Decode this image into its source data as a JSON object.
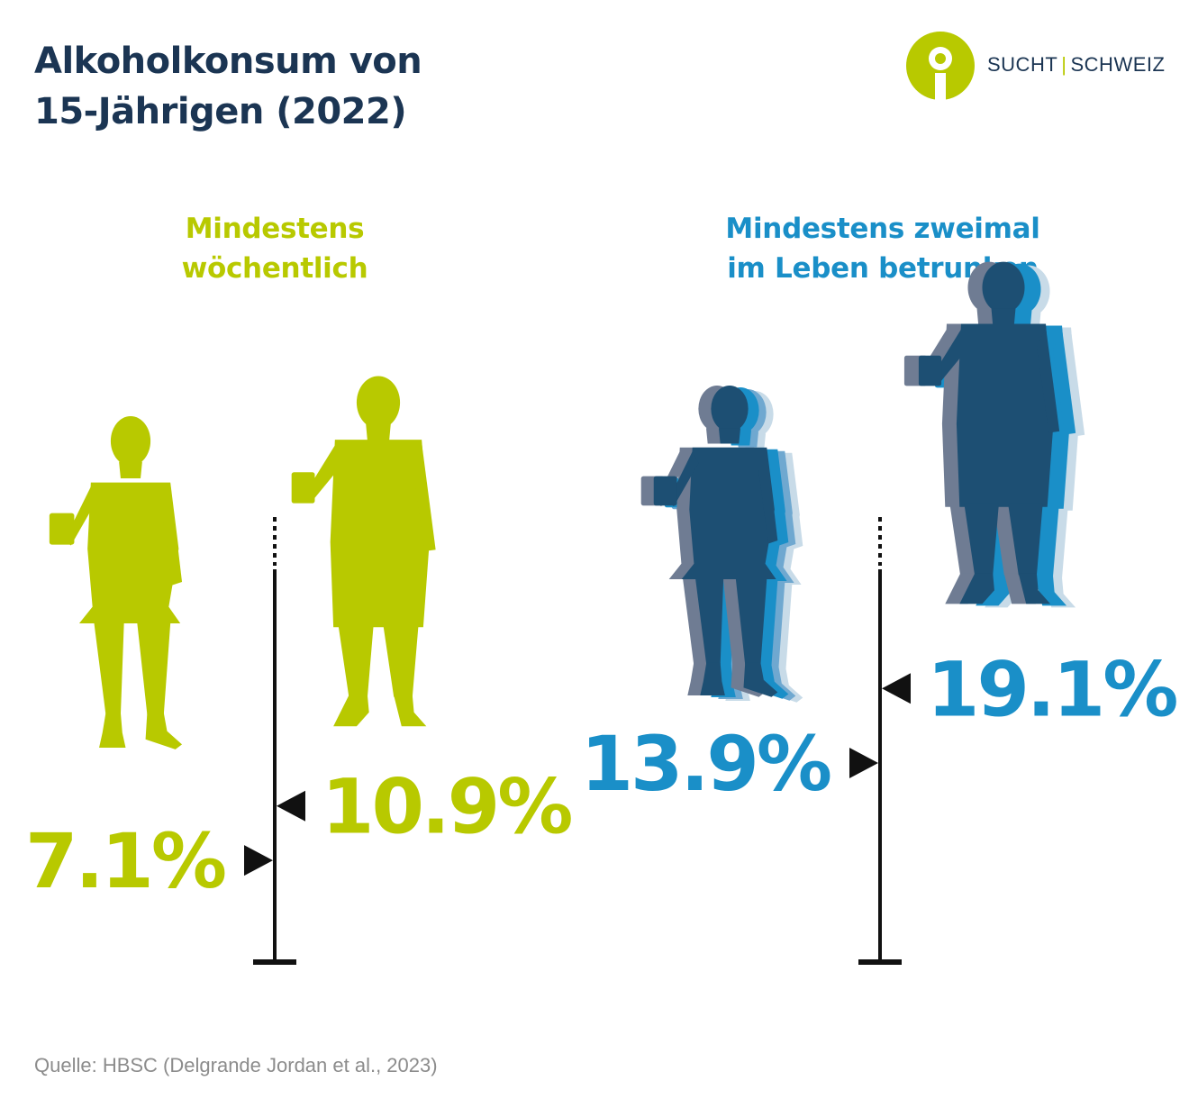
{
  "header": {
    "title_line1": "Alkoholkonsum von",
    "title_line2": "15-Jährigen (2022)"
  },
  "logo": {
    "left_word": "SUCHT",
    "separator": "|",
    "right_word": "SCHWEIZ",
    "icon": "person-circle-logo-icon"
  },
  "colors": {
    "title": "#1b3553",
    "green": "#b8c900",
    "blue": "#1a8fc8",
    "dark_blue": "#1d4f73",
    "shadow_gray": "#6f7c93",
    "axis": "#111111",
    "source": "#8c8c8c"
  },
  "groups": [
    {
      "label_line1": "Mindestens",
      "label_line2": "wöchentlich",
      "color": "#b8c900"
    },
    {
      "label_line1": "Mindestens zweimal",
      "label_line2": "im Leben betrunken",
      "color": "#1a8fc8"
    }
  ],
  "chart_data": {
    "type": "bar",
    "unit": "%",
    "categories": [
      "Mindestens wöchentlich",
      "Mindestens zweimal im Leben betrunken"
    ],
    "series": [
      {
        "values": [
          7.1,
          13.9
        ],
        "labels": [
          "7.1%",
          "13.9%"
        ]
      },
      {
        "values": [
          10.9,
          19.1
        ],
        "labels": [
          "10.9%",
          "19.1%"
        ]
      }
    ],
    "ylim": [
      0,
      25
    ],
    "axis_break": true,
    "grid": false
  },
  "footer": {
    "source": "Quelle: HBSC (Delgrande Jordan et al., 2023)"
  }
}
